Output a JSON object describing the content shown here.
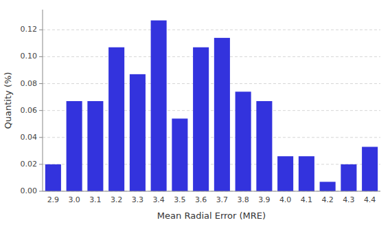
{
  "chart_data": {
    "type": "bar",
    "categories": [
      "2.9",
      "3.0",
      "3.1",
      "3.2",
      "3.3",
      "3.4",
      "3.5",
      "3.6",
      "3.7",
      "3.8",
      "3.9",
      "4.0",
      "4.1",
      "4.2",
      "4.3",
      "4.4"
    ],
    "values": [
      0.02,
      0.067,
      0.067,
      0.107,
      0.087,
      0.127,
      0.054,
      0.107,
      0.114,
      0.074,
      0.067,
      0.026,
      0.026,
      0.007,
      0.02,
      0.033
    ],
    "color": "#3333dd",
    "xlabel": "Mean Radial Error (MRE)",
    "ylabel": "Quantity (%)",
    "ylim": [
      0,
      0.135
    ],
    "yticks": [
      {
        "value": 0,
        "label": "0.00"
      },
      0.02,
      0.04,
      0.06,
      0.08,
      {
        "value": 0.1,
        "label": "0.10"
      },
      0.12
    ],
    "grid": true
  }
}
